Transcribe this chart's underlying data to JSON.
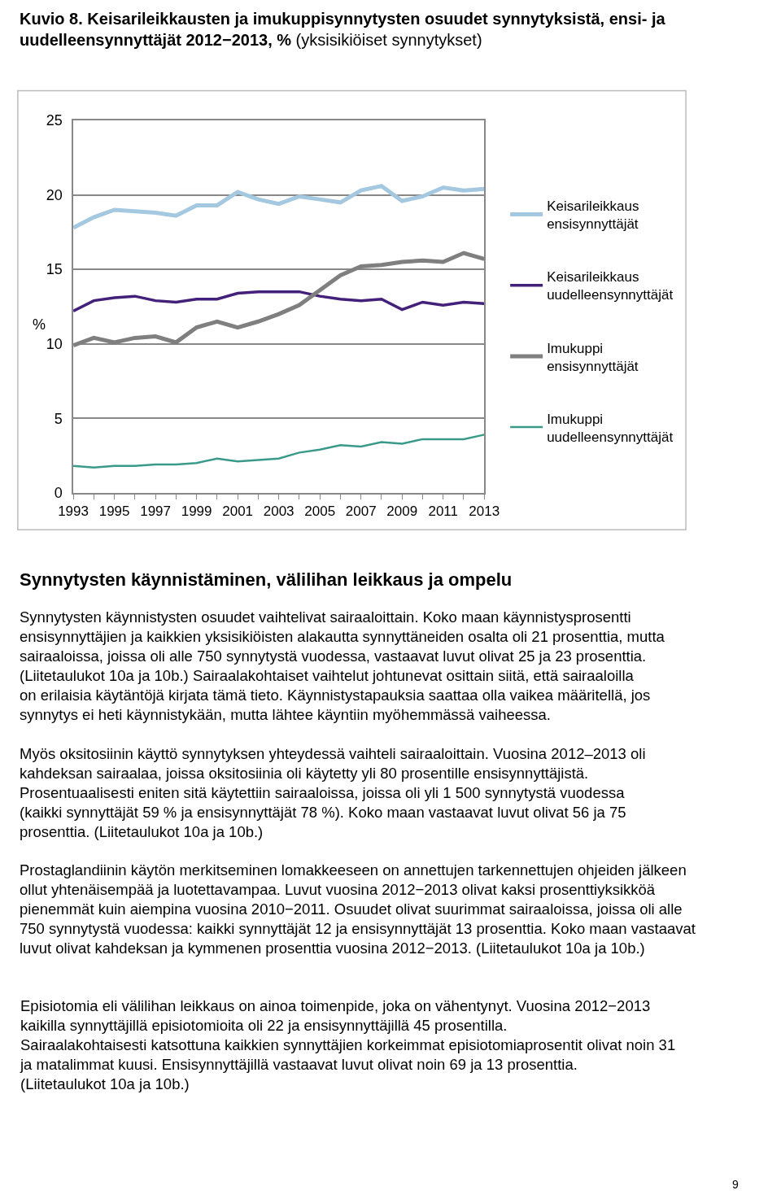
{
  "chart_data": {
    "type": "line",
    "title": "Kuvio 8. Keisarileikkausten ja imukuppisynnytysten osuudet synnytyksistä, ensi- ja uudelleensynnyttäjät 2012−2013, %",
    "subtitle": "(yksisikiöiset synnytykset)",
    "ylabel": "%",
    "x": [
      1993,
      1994,
      1995,
      1996,
      1997,
      1998,
      1999,
      2000,
      2001,
      2002,
      2003,
      2004,
      2005,
      2006,
      2007,
      2008,
      2009,
      2010,
      2011,
      2012,
      2013
    ],
    "series": [
      {
        "name": "Keisarileikkaus ensisynnyttäjät",
        "color": "#a5c8e1",
        "values": [
          17.8,
          18.5,
          19.0,
          18.9,
          18.8,
          18.6,
          19.3,
          19.3,
          20.2,
          19.7,
          19.4,
          19.9,
          19.7,
          19.5,
          20.3,
          20.6,
          19.6,
          19.9,
          20.5,
          20.3,
          20.4
        ]
      },
      {
        "name": "Keisarileikkaus uudelleensynnyttäjät",
        "color": "#43207a",
        "values": [
          12.2,
          12.9,
          13.1,
          13.2,
          12.9,
          12.8,
          13.0,
          13.0,
          13.4,
          13.5,
          13.5,
          13.5,
          13.2,
          13.0,
          12.9,
          13.0,
          12.3,
          12.8,
          12.6,
          12.8,
          12.7
        ]
      },
      {
        "name": "Imukuppi ensisynnyttäjät",
        "color": "#7f7f7f",
        "values": [
          9.9,
          10.4,
          10.1,
          10.4,
          10.5,
          10.1,
          11.1,
          11.5,
          11.1,
          11.5,
          12.0,
          12.6,
          13.6,
          14.6,
          15.2,
          15.3,
          15.5,
          15.6,
          15.5,
          16.1,
          15.7
        ]
      },
      {
        "name": "Imukuppi uudelleensynnyttäjät",
        "color": "#3a9a8a",
        "values": [
          1.8,
          1.7,
          1.8,
          1.8,
          1.9,
          1.9,
          2.0,
          2.3,
          2.1,
          2.2,
          2.3,
          2.7,
          2.9,
          3.2,
          3.1,
          3.4,
          3.3,
          3.6,
          3.6,
          3.6,
          3.9
        ]
      }
    ],
    "xlim": [
      1993,
      2013
    ],
    "xticks": [
      1993,
      {
        "value": 1994,
        "label": null
      },
      1995,
      {
        "value": 1996,
        "label": null
      },
      1997,
      {
        "value": 1998,
        "label": null
      },
      1999,
      {
        "value": 2000,
        "label": null
      },
      2001,
      {
        "value": 2002,
        "label": null
      },
      2003,
      {
        "value": 2004,
        "label": null
      },
      2005,
      {
        "value": 2006,
        "label": null
      },
      2007,
      {
        "value": 2008,
        "label": null
      },
      2009,
      {
        "value": 2010,
        "label": null
      },
      2011,
      {
        "value": 2012,
        "label": null
      },
      2013
    ],
    "ylim": [
      0,
      25
    ],
    "yticks": [
      0,
      5,
      10,
      15,
      20,
      25
    ],
    "grid": "y",
    "legend": "right",
    "annotations": [
      "Synnytysten käynnistäminen, välilihan leikkaus ja ompelu",
      "Synnytysten käynnistysten osuudet vaihtelivat sairaaloittain. Koko maan käynnistysprosentti ensisynnyttäjien ja kaikkien yksisikiöisten alakautta synnyttäneiden osalta oli 21 prosenttia, mutta sairaaloissa, joissa oli alle 750 synnytystä vuodessa, vastaavat luvut olivat 25 ja 23 prosenttia. (Liitetaulukot 10a ja 10b.) Sairaalakohtaiset vaihtelut johtunevat osittain siitä, että sairaaloilla on erilaisia käytäntöjä kirjata tämä tieto. Käynnistystapauksia saattaa olla vaikea määritellä, jos synnytys ei heti käynnistykään, mutta lähtee käyntiin myöhemmässä vaiheessa.",
      "Myös oksitosiinin käyttö synnytyksen yhteydessä vaihteli sairaaloittain. Vuosina 2012–2013 oli kahdeksan sairaalaa, joissa oksitosiinia oli käytetty yli 80 prosentille ensisynnyttäjistä. Prosentuaalisesti eniten sitä käytettiin sairaaloissa, joissa oli yli 1 500 synnytystä vuodessa (kaikki synnyttäjät 59 % ja ensisynnyttäjät 78 %). Koko maan vastaavat luvut olivat 56 ja 75 prosenttia. (Liitetaulukot 10a ja 10b.)",
      "Prostaglandiinin käytön merkitseminen lomakkeeseen on annettujen tarkennettujen ohjeiden jälkeen ollut yhtenäisempää ja luotettavampaa. Luvut vuosina 2012−2013 olivat kaksi prosenttiyksikköä pienemmät kuin aiempina vuosina 2010−2011. Osuudet olivat suurimmat sairaaloissa, joissa oli alle 750 synnytystä vuodessa: kaikki synnyttäjät 12 ja ensisynnyttäjät 13 prosenttia. Koko maan vastaavat luvut olivat kahdeksan ja kymmenen prosenttia vuosina 2012−2013. (Liitetaulukot 10a ja 10b.)",
      "Episiotomia eli välilihan leikkaus on ainoa toimenpide, joka on vähentynyt. Vuosina 2012−2013 kaikilla synnyttäjillä episiotomioita oli 22 ja ensisynnyttäjillä 45 prosentilla. Sairaalakohtaisesti katsottuna kaikkien synnyttäjien korkeimmat episiotomiaprosentit olivat noin 31 ja matalimmat kuusi. Ensisynnyttäjillä vastaavat luvut olivat noin 69 ja 13 prosenttia. (Liitetaulukot 10a ja 10b.)",
      "9"
    ]
  }
}
